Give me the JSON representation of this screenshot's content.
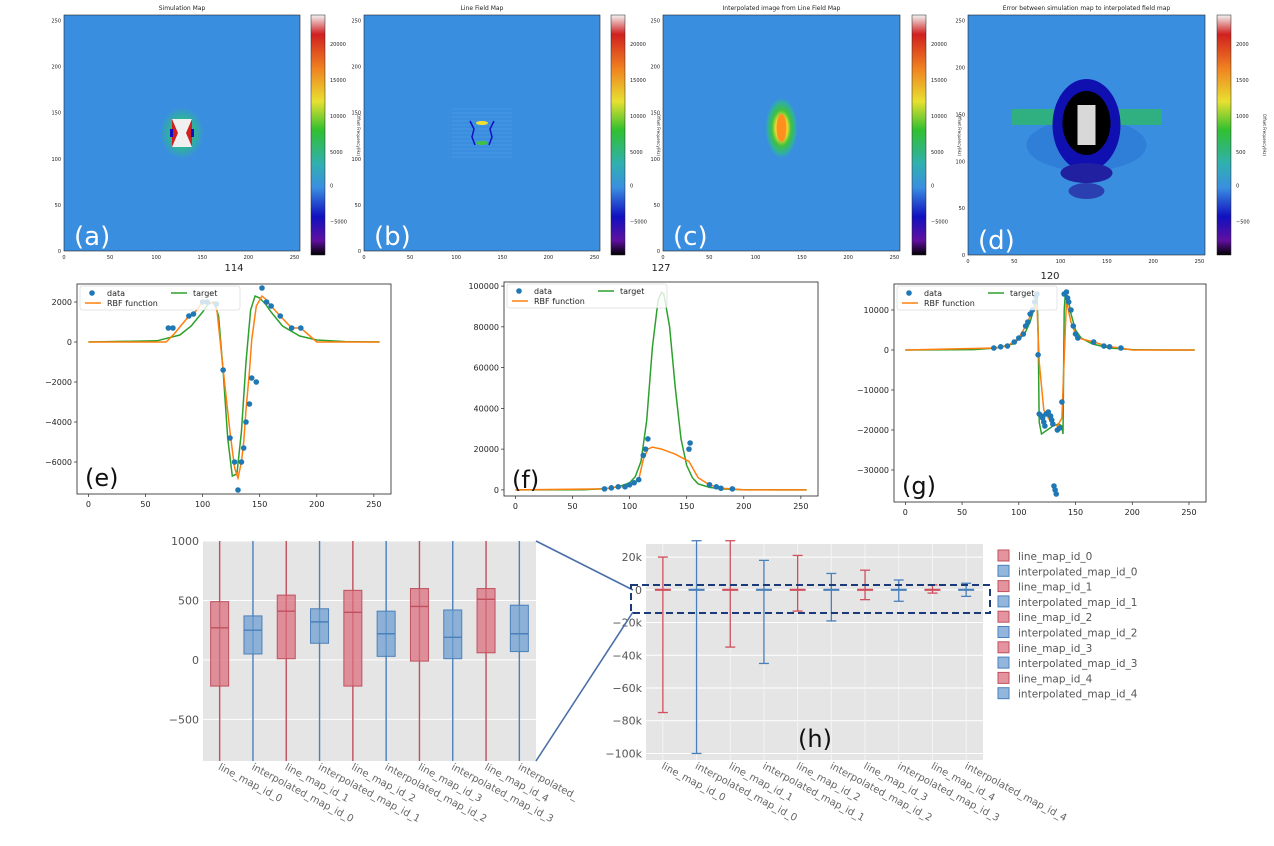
{
  "colors": {
    "map_bg": "#3a8ee0",
    "blue": "#1f77b4",
    "orange": "#ff7f0e",
    "green": "#2ca02c",
    "red_box": "#d9707d",
    "blue_box": "#6f9fd0",
    "panel_bg": "#e5e5e5",
    "dash": "#1a3a7a"
  },
  "maps": [
    {
      "title": "Simulation Map",
      "label": "(a)",
      "cbar_ticks": [
        "20000",
        "15000",
        "10000",
        "5000",
        "0",
        "−5000"
      ],
      "cbar_label": "Offset Frequency(Hz)"
    },
    {
      "title": "Line Field Map",
      "label": "(b)",
      "cbar_ticks": [
        "20000",
        "15000",
        "10000",
        "5000",
        "0",
        "−5000"
      ],
      "cbar_label": "Offset Frequency(Hz)"
    },
    {
      "title": "Interpolated image from Line Field Map",
      "label": "(c)",
      "cbar_ticks": [
        "20000",
        "15000",
        "10000",
        "5000",
        "0",
        "−5000"
      ],
      "cbar_label": "Offset Frequency(Hz)"
    },
    {
      "title": "Error between simulation map to interpolated field map",
      "label": "(d)",
      "cbar_ticks": [
        "2000",
        "1500",
        "1000",
        "500",
        "0",
        "−500"
      ],
      "cbar_label": "Offset Frequency(Hz)"
    }
  ],
  "map_axis": {
    "x_ticks": [
      "0",
      "50",
      "100",
      "150",
      "200",
      "250"
    ],
    "y_ticks": [
      "0",
      "50",
      "100",
      "150",
      "200",
      "250"
    ]
  },
  "chart_data": [
    {
      "type": "line",
      "panel": "(e)",
      "title": "114",
      "xlim": [
        -10,
        265
      ],
      "ylim": [
        -7600,
        2900
      ],
      "x_ticks": [
        0,
        50,
        100,
        150,
        200,
        250
      ],
      "y_ticks": [
        -6000,
        -4000,
        -2000,
        0,
        2000
      ],
      "legend": [
        "data",
        "RBF function",
        "target"
      ],
      "scatter": [
        [
          70,
          700
        ],
        [
          74,
          700
        ],
        [
          88,
          1300
        ],
        [
          92,
          1400
        ],
        [
          100,
          2000
        ],
        [
          104,
          2000
        ],
        [
          112,
          1900
        ],
        [
          118,
          -1400
        ],
        [
          124,
          -4800
        ],
        [
          128,
          -6000
        ],
        [
          131,
          -7400
        ],
        [
          134,
          -6000
        ],
        [
          136,
          -5300
        ],
        [
          138,
          -4000
        ],
        [
          141,
          -3100
        ],
        [
          143,
          -1800
        ],
        [
          147,
          -2000
        ],
        [
          152,
          2700
        ],
        [
          156,
          2000
        ],
        [
          160,
          1800
        ],
        [
          168,
          1300
        ],
        [
          178,
          700
        ],
        [
          186,
          700
        ]
      ],
      "series": [
        {
          "name": "target",
          "x": [
            0,
            60,
            80,
            90,
            100,
            105,
            110,
            114,
            118,
            122,
            126,
            130,
            134,
            138,
            142,
            146,
            150,
            155,
            160,
            170,
            185,
            200,
            225,
            255
          ],
          "y": [
            0,
            60,
            350,
            800,
            1500,
            1900,
            2000,
            1300,
            -1500,
            -4800,
            -6700,
            -6600,
            -4500,
            -1000,
            1600,
            2300,
            2200,
            1900,
            1500,
            800,
            300,
            100,
            20,
            0
          ]
        },
        {
          "name": "RBF function",
          "x": [
            0,
            68,
            75,
            88,
            92,
            100,
            104,
            112,
            118,
            124,
            128,
            131,
            134,
            136,
            138,
            141,
            143,
            147,
            152,
            156,
            160,
            168,
            178,
            186,
            200,
            255
          ],
          "y": [
            0,
            0,
            400,
            1300,
            1400,
            2000,
            2000,
            1900,
            -1400,
            -4500,
            -6300,
            -6800,
            -6000,
            -5000,
            -3400,
            -1500,
            100,
            1800,
            2300,
            2100,
            1800,
            1300,
            700,
            700,
            0,
            0
          ]
        }
      ]
    },
    {
      "type": "line",
      "panel": "(f)",
      "title": "127",
      "xlim": [
        -10,
        265
      ],
      "ylim": [
        -3000,
        102000
      ],
      "x_ticks": [
        0,
        50,
        100,
        150,
        200,
        250
      ],
      "y_ticks": [
        0,
        20000,
        40000,
        60000,
        80000,
        100000
      ],
      "legend": [
        "data",
        "RBF function",
        "target"
      ],
      "scatter": [
        [
          78,
          500
        ],
        [
          84,
          1000
        ],
        [
          90,
          1500
        ],
        [
          96,
          1500
        ],
        [
          100,
          2500
        ],
        [
          104,
          3500
        ],
        [
          108,
          5000
        ],
        [
          112,
          17000
        ],
        [
          114,
          20000
        ],
        [
          116,
          25000
        ],
        [
          152,
          20000
        ],
        [
          153,
          23000
        ],
        [
          170,
          2500
        ],
        [
          176,
          1500
        ],
        [
          180,
          800
        ],
        [
          190,
          500
        ]
      ],
      "series": [
        {
          "name": "target",
          "x": [
            0,
            60,
            80,
            90,
            100,
            105,
            110,
            115,
            120,
            125,
            128,
            130,
            135,
            140,
            145,
            150,
            155,
            160,
            170,
            180,
            200,
            230,
            255
          ],
          "y": [
            0,
            100,
            700,
            1500,
            3500,
            6500,
            14000,
            34000,
            70000,
            93000,
            97000,
            96000,
            80000,
            50000,
            25000,
            12000,
            6000,
            3000,
            1200,
            500,
            100,
            0,
            0
          ]
        },
        {
          "name": "RBF function",
          "x": [
            0,
            78,
            84,
            90,
            96,
            100,
            104,
            108,
            112,
            116,
            120,
            128,
            140,
            152,
            160,
            170,
            176,
            180,
            190,
            200,
            255
          ],
          "y": [
            0,
            500,
            1000,
            1500,
            1500,
            2500,
            3500,
            5000,
            15000,
            20000,
            21000,
            20000,
            17500,
            14000,
            6000,
            2500,
            1500,
            800,
            500,
            0,
            0
          ]
        }
      ]
    },
    {
      "type": "line",
      "panel": "(g)",
      "title": "120",
      "xlim": [
        -10,
        265
      ],
      "ylim": [
        -38000,
        16500
      ],
      "x_ticks": [
        0,
        50,
        100,
        150,
        200,
        250
      ],
      "y_ticks": [
        -30000,
        -20000,
        -10000,
        0,
        10000
      ],
      "legend": [
        "data",
        "RBF function",
        "target"
      ],
      "scatter": [
        [
          78,
          500
        ],
        [
          84,
          800
        ],
        [
          90,
          1000
        ],
        [
          96,
          2000
        ],
        [
          100,
          3000
        ],
        [
          104,
          4000
        ],
        [
          106,
          6000
        ],
        [
          108,
          7000
        ],
        [
          110,
          9000
        ],
        [
          112,
          10000
        ],
        [
          114,
          12000
        ],
        [
          115,
          13500
        ],
        [
          116,
          14000
        ],
        [
          117,
          -1200
        ],
        [
          118,
          -16000
        ],
        [
          120,
          -16500
        ],
        [
          121,
          -17000
        ],
        [
          122,
          -18000
        ],
        [
          123,
          -19000
        ],
        [
          124,
          -16000
        ],
        [
          126,
          -15500
        ],
        [
          128,
          -16500
        ],
        [
          129,
          -17500
        ],
        [
          130,
          -18500
        ],
        [
          131,
          -34000
        ],
        [
          132,
          -35000
        ],
        [
          133,
          -36000
        ],
        [
          134,
          -20000
        ],
        [
          136,
          -19500
        ],
        [
          138,
          -13000
        ],
        [
          140,
          14000
        ],
        [
          142,
          14500
        ],
        [
          143,
          13000
        ],
        [
          144,
          12000
        ],
        [
          146,
          10000
        ],
        [
          148,
          6000
        ],
        [
          150,
          4000
        ],
        [
          152,
          3000
        ],
        [
          166,
          2000
        ],
        [
          175,
          1000
        ],
        [
          180,
          800
        ],
        [
          190,
          500
        ]
      ],
      "series": [
        {
          "name": "target",
          "x": [
            0,
            60,
            80,
            95,
            105,
            110,
            114,
            116,
            117,
            118,
            120,
            125,
            130,
            135,
            138,
            139,
            140,
            141,
            143,
            146,
            150,
            155,
            165,
            180,
            200,
            230,
            255
          ],
          "y": [
            0,
            100,
            500,
            1500,
            4000,
            7000,
            11000,
            14000,
            5000,
            -18000,
            -21000,
            -20000,
            -19000,
            -18500,
            -19000,
            -21000,
            10000,
            14000,
            13500,
            9000,
            5000,
            3000,
            1500,
            500,
            100,
            0,
            0
          ]
        },
        {
          "name": "RBF function",
          "x": [
            0,
            78,
            90,
            100,
            108,
            112,
            116,
            118,
            122,
            126,
            130,
            134,
            138,
            141,
            142,
            144,
            146,
            150,
            155,
            166,
            180,
            190,
            200,
            255
          ],
          "y": [
            0,
            500,
            1000,
            3000,
            7000,
            10000,
            11000,
            -3000,
            -15000,
            -17000,
            -18500,
            -19000,
            -17000,
            5000,
            12500,
            9500,
            7000,
            4000,
            2800,
            2000,
            800,
            500,
            0,
            0
          ]
        }
      ]
    },
    {
      "type": "box",
      "panel": "zoom",
      "ylim": [
        -850,
        1000
      ],
      "y_ticks": [
        1000,
        500,
        0,
        -500
      ],
      "boxes": [
        {
          "name": "line_map_id_0",
          "q1": -220,
          "median": 270,
          "q3": 490,
          "color": "red"
        },
        {
          "name": "interpolated_map_id_0",
          "q1": 50,
          "median": 250,
          "q3": 370,
          "color": "blue"
        },
        {
          "name": "line_map_id_1",
          "q1": 10,
          "median": 410,
          "q3": 545,
          "color": "red"
        },
        {
          "name": "interpolated_map_id_1",
          "q1": 140,
          "median": 320,
          "q3": 430,
          "color": "blue"
        },
        {
          "name": "line_map_id_2",
          "q1": -220,
          "median": 400,
          "q3": 585,
          "color": "red"
        },
        {
          "name": "interpolated_map_id_2",
          "q1": 30,
          "median": 220,
          "q3": 410,
          "color": "blue"
        },
        {
          "name": "line_map_id_3",
          "q1": -10,
          "median": 450,
          "q3": 600,
          "color": "red"
        },
        {
          "name": "interpolated_map_id_3",
          "q1": 10,
          "median": 190,
          "q3": 420,
          "color": "blue"
        },
        {
          "name": "line_map_id_4",
          "q1": 60,
          "median": 510,
          "q3": 600,
          "color": "red"
        },
        {
          "name": "interpolated_map_id_4",
          "q1": 70,
          "median": 220,
          "q3": 460,
          "color": "blue"
        }
      ],
      "x_labels": [
        "line_map_id_0",
        "interpolated_map_id_0",
        "line_map_id_1",
        "interpolated_map_id_1",
        "line_map_id_2",
        "interpolated_map_id_2",
        "line_map_id_3",
        "interpolated_map_id_3",
        "line_map_id_4",
        "interpolated_"
      ]
    },
    {
      "type": "box",
      "panel": "(h)",
      "ylim": [
        -104000,
        28000
      ],
      "y_ticks": [
        20000,
        0,
        -20000,
        -40000,
        -60000,
        -80000,
        -100000
      ],
      "y_tick_labels": [
        "20k",
        "0",
        "−20k",
        "−40k",
        "−60k",
        "−80k",
        "−100k"
      ],
      "boxes": [
        {
          "name": "line_map_id_0",
          "min": -75000,
          "max": 20000,
          "color": "red"
        },
        {
          "name": "interpolated_map_id_0",
          "min": -100000,
          "max": 30000,
          "color": "blue"
        },
        {
          "name": "line_map_id_1",
          "min": -35000,
          "max": 30000,
          "color": "red"
        },
        {
          "name": "interpolated_map_id_1",
          "min": -45000,
          "max": 18000,
          "color": "blue"
        },
        {
          "name": "line_map_id_2",
          "min": -13000,
          "max": 21000,
          "color": "red"
        },
        {
          "name": "interpolated_map_id_2",
          "min": -19000,
          "max": 10000,
          "color": "blue"
        },
        {
          "name": "line_map_id_3",
          "min": -6000,
          "max": 12000,
          "color": "red"
        },
        {
          "name": "interpolated_map_id_3",
          "min": -7000,
          "max": 6000,
          "color": "blue"
        },
        {
          "name": "line_map_id_4",
          "min": -2000,
          "max": 3000,
          "color": "red"
        },
        {
          "name": "interpolated_map_id_4",
          "min": -4000,
          "max": 4000,
          "color": "blue"
        }
      ],
      "x_labels": [
        "line_map_id_0",
        "interpolated_map_id_0",
        "line_map_id_1",
        "interpolated_map_id_1",
        "line_map_id_2",
        "interpolated_map_id_2",
        "line_map_id_3",
        "interpolated_map_id_3",
        "line_map_id_4",
        "interpolated_map_id_4"
      ],
      "legend": [
        "line_map_id_0",
        "interpolated_map_id_0",
        "line_map_id_1",
        "interpolated_map_id_1",
        "line_map_id_2",
        "interpolated_map_id_2",
        "line_map_id_3",
        "interpolated_map_id_3",
        "line_map_id_4",
        "interpolated_map_id_4"
      ]
    }
  ]
}
